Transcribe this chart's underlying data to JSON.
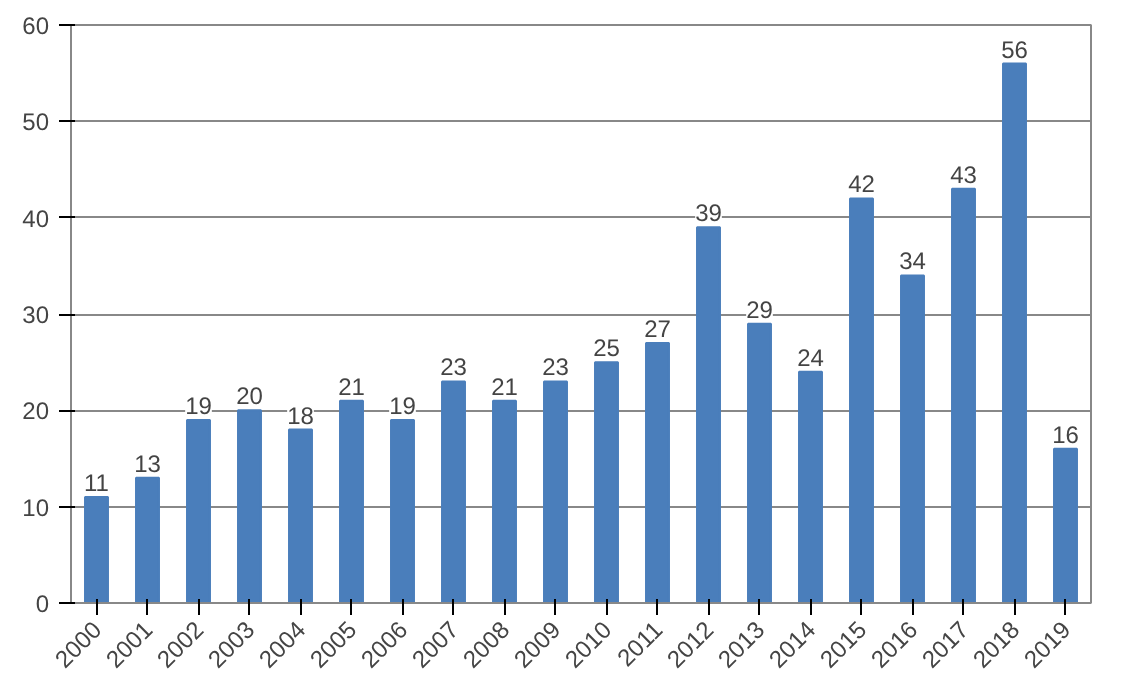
{
  "chart_data": {
    "type": "bar",
    "categories": [
      "2000",
      "2001",
      "2002",
      "2003",
      "2004",
      "2005",
      "2006",
      "2007",
      "2008",
      "2009",
      "2010",
      "2011",
      "2012",
      "2013",
      "2014",
      "2015",
      "2016",
      "2017",
      "2018",
      "2019"
    ],
    "values": [
      11,
      13,
      19,
      20,
      18,
      21,
      19,
      23,
      21,
      23,
      25,
      27,
      39,
      29,
      24,
      42,
      34,
      43,
      56,
      16
    ],
    "color": "#4a7ebb",
    "ylim": [
      0,
      60
    ],
    "yticks": [
      0,
      10,
      20,
      30,
      40,
      50,
      60
    ],
    "grid": "y",
    "data_labels": true
  }
}
